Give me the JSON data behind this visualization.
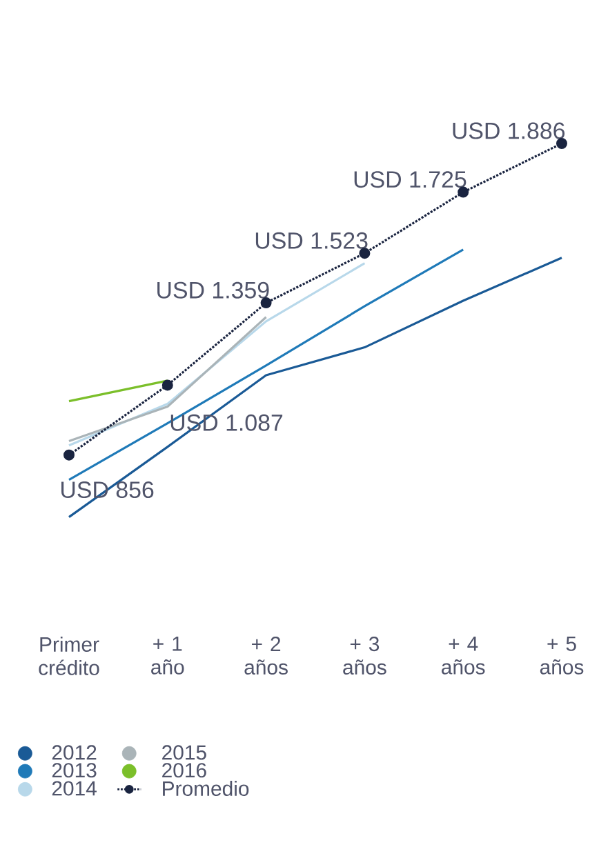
{
  "chart_data": {
    "type": "line",
    "categories": [
      "Primer crédito",
      "+ 1 año",
      "+ 2 años",
      "+ 3 años",
      "+ 4 años",
      "+ 5 años"
    ],
    "legend": "bottom",
    "series": [
      {
        "name": "2012",
        "color": "#1a5a96",
        "values": [
          651,
          883,
          1120,
          1212,
          1366,
          1508
        ]
      },
      {
        "name": "2013",
        "color": "#1f7ab8",
        "values": [
          774,
          961,
          1152,
          1348,
          1535,
          null
        ]
      },
      {
        "name": "2014",
        "color": "#b8d8ea",
        "values": [
          888,
          1025,
          1298,
          1490,
          null,
          null
        ]
      },
      {
        "name": "2015",
        "color": "#aab4b8",
        "values": [
          902,
          1016,
          1312,
          null,
          null,
          null
        ]
      },
      {
        "name": "2016",
        "color": "#7bbf2a",
        "values": [
          1034,
          1102,
          null,
          null,
          null,
          null
        ]
      },
      {
        "name": "Promedio",
        "color": "#1a2440",
        "marker": "circle",
        "line_style": "dotted",
        "values": [
          856,
          1087,
          1359,
          1523,
          1725,
          1886
        ],
        "value_labels": [
          "USD 856",
          "USD 1.087",
          "USD 1.359",
          "USD 1.523",
          "USD 1.725",
          "USD 1.886"
        ]
      }
    ]
  }
}
